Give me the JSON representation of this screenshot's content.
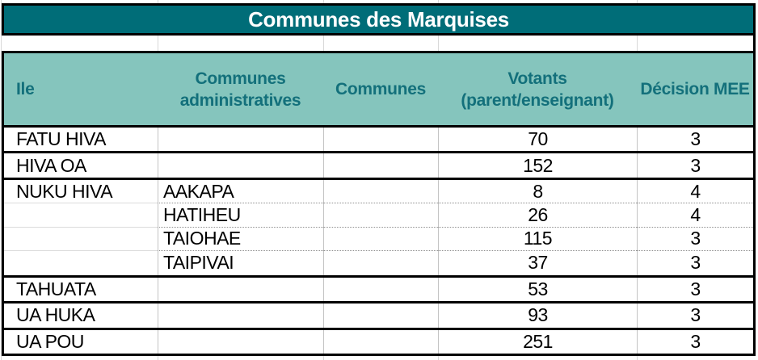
{
  "title": "Communes des Marquises",
  "colors": {
    "title_bg": "#006d78",
    "title_text": "#ffffff",
    "header_bg": "#85c5bd",
    "header_text": "#13707b",
    "border_black": "#000000",
    "gridline_gray": "#d8d8d8"
  },
  "table": {
    "headers": [
      {
        "label": "Ile",
        "lines": [
          "Ile"
        ]
      },
      {
        "label": "Communes administratives",
        "lines": [
          "Communes",
          "administratives"
        ]
      },
      {
        "label": "Communes",
        "lines": [
          "Communes"
        ]
      },
      {
        "label": "Votants (parent/enseignant)",
        "lines": [
          "Votants",
          "(parent/enseignant)"
        ]
      },
      {
        "label": "Décision MEE",
        "lines": [
          "Décision MEE"
        ]
      }
    ],
    "rows": [
      {
        "ile": "FATU HIVA",
        "commune_administrative": "",
        "commune": "",
        "votants": "70",
        "decision_mee": "3"
      },
      {
        "ile": "HIVA OA",
        "commune_administrative": "",
        "commune": "",
        "votants": "152",
        "decision_mee": "3"
      },
      {
        "ile": "NUKU HIVA",
        "commune_administrative": "AAKAPA",
        "commune": "",
        "votants": "8",
        "decision_mee": "4"
      },
      {
        "ile": "",
        "commune_administrative": "HATIHEU",
        "commune": "",
        "votants": "26",
        "decision_mee": "4"
      },
      {
        "ile": "",
        "commune_administrative": "TAIOHAE",
        "commune": "",
        "votants": "115",
        "decision_mee": "3"
      },
      {
        "ile": "",
        "commune_administrative": "TAIPIVAI",
        "commune": "",
        "votants": "37",
        "decision_mee": "3"
      },
      {
        "ile": "TAHUATA",
        "commune_administrative": "",
        "commune": "",
        "votants": "53",
        "decision_mee": "3"
      },
      {
        "ile": "UA HUKA",
        "commune_administrative": "",
        "commune": "",
        "votants": "93",
        "decision_mee": "3"
      },
      {
        "ile": "UA POU",
        "commune_administrative": "",
        "commune": "",
        "votants": "251",
        "decision_mee": "3"
      }
    ]
  }
}
